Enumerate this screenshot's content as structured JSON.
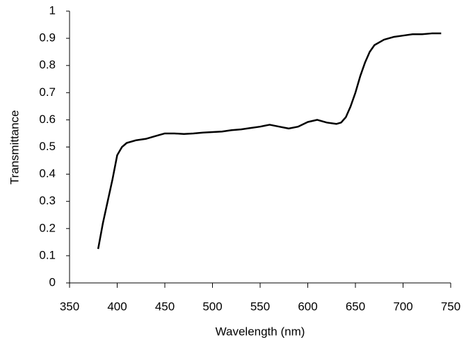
{
  "chart_data": {
    "type": "line",
    "x_label": "Wavelength (nm)",
    "y_label": "Transmittance",
    "x": [
      380,
      385,
      390,
      395,
      400,
      405,
      410,
      420,
      430,
      440,
      450,
      460,
      470,
      480,
      490,
      500,
      510,
      520,
      530,
      540,
      550,
      560,
      570,
      580,
      590,
      600,
      610,
      620,
      630,
      635,
      640,
      645,
      650,
      655,
      660,
      665,
      670,
      680,
      690,
      700,
      710,
      720,
      730,
      740
    ],
    "values": [
      0.125,
      0.22,
      0.3,
      0.38,
      0.47,
      0.5,
      0.515,
      0.525,
      0.53,
      0.54,
      0.55,
      0.55,
      0.548,
      0.55,
      0.553,
      0.555,
      0.557,
      0.562,
      0.565,
      0.57,
      0.575,
      0.582,
      0.575,
      0.568,
      0.575,
      0.592,
      0.6,
      0.59,
      0.585,
      0.59,
      0.61,
      0.65,
      0.7,
      0.76,
      0.81,
      0.85,
      0.875,
      0.895,
      0.905,
      0.91,
      0.915,
      0.915,
      0.918,
      0.918
    ],
    "color": "#000000",
    "xlim": [
      350,
      750
    ],
    "xticks": [
      350,
      400,
      450,
      500,
      550,
      600,
      650,
      700,
      750
    ],
    "ylim": [
      0,
      1
    ],
    "yticks": [
      0,
      0.1,
      0.2,
      0.3,
      0.4,
      0.5,
      0.6,
      0.7,
      0.8,
      0.9,
      1
    ],
    "grid": false
  }
}
